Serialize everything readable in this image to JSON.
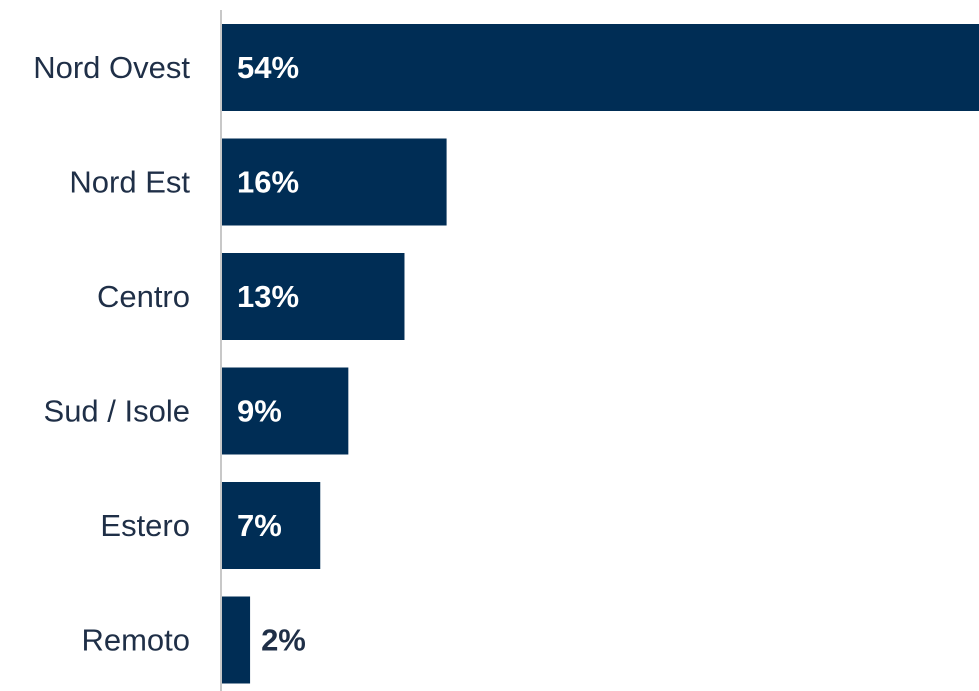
{
  "chart_data": {
    "type": "bar",
    "orientation": "horizontal",
    "categories": [
      "Nord Ovest",
      "Nord Est",
      "Centro",
      "Sud / Isole",
      "Estero",
      "Remoto"
    ],
    "values": [
      54,
      16,
      13,
      9,
      7,
      2
    ],
    "value_labels": [
      "54%",
      "16%",
      "13%",
      "9%",
      "7%",
      "2%"
    ],
    "unit": "%",
    "xlim": [
      0,
      54
    ],
    "grid": false,
    "legend": "none",
    "title": "",
    "xlabel": "",
    "ylabel": ""
  },
  "colors": {
    "bar": "#002d55",
    "label_inside": "#ffffff",
    "label_outside": "#1f2f47",
    "axis_line": "#c8c8c8",
    "category_text": "#1f2f47"
  }
}
